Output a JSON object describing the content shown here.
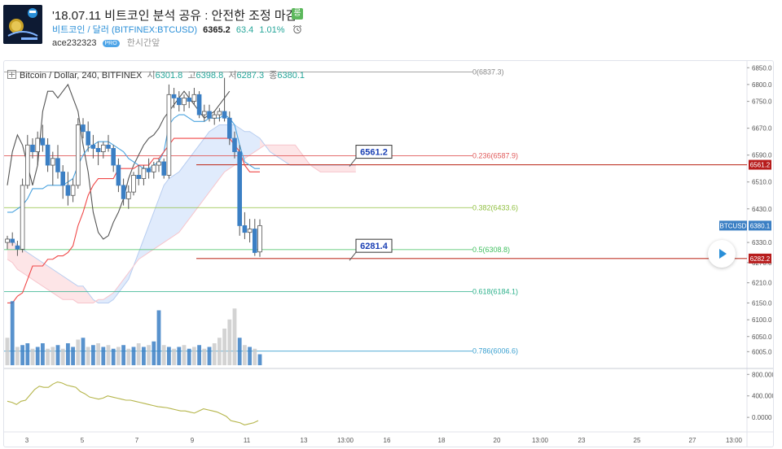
{
  "header": {
    "title": "'18.07.11 비트코인 분석 공유 : 안전한 조정 마감",
    "category_badge": "롱",
    "symbol_link": "비트코인 / 달러 (BITFINEX:BTCUSD)",
    "price": "6365.2",
    "change": "63.4",
    "change_pct": "1.01%",
    "author": "ace232323",
    "pro_label": "PRO",
    "time_ago": "한시간앞"
  },
  "legend": {
    "symbol": "Bitcoin / Dollar, 240, BITFINEX",
    "open_label": "시",
    "open": "6301.8",
    "high_label": "고",
    "high": "6398.8",
    "low_label": "저",
    "low": "6287.3",
    "close_label": "종",
    "close": "6380.1"
  },
  "colors": {
    "up": "#ffffff",
    "down": "#3b7fc4",
    "candle_border": "#555555",
    "fast_line": "#f04848",
    "slow_line": "#4aa3df",
    "lag_line": "#555555",
    "cloud_bull": "#dbe8fb",
    "cloud_bear": "#fde0e3",
    "resistance": "#c0392b",
    "volume_up": "#c8c8c8",
    "volume_down": "#3b7fc4",
    "oscillator": "#b5b54a"
  },
  "chart_data": {
    "type": "candlestick",
    "ylim": [
      5955,
      6870
    ],
    "y_ticks": [
      "6850.0",
      "6800.0",
      "6750.0",
      "6670.0",
      "6590.0",
      "6510.0",
      "6430.0",
      "6330.0",
      "6270.0",
      "6210.0",
      "6150.0",
      "6100.0",
      "6050.0",
      "6005.0"
    ],
    "x_ticks": [
      "3",
      "5",
      "7",
      "9",
      "11",
      "13",
      "13:00",
      "16",
      "18",
      "20",
      "13:00",
      "23",
      "25",
      "27",
      "13:00"
    ],
    "fib_levels": [
      {
        "label": "0(6837.3)",
        "value": 6837.3,
        "color": "#888888"
      },
      {
        "label": "0.236(6587.9)",
        "value": 6587.9,
        "color": "#e05a5a"
      },
      {
        "label": "0.382(6433.6)",
        "value": 6433.6,
        "color": "#8fbf3f"
      },
      {
        "label": "0.5(6308.8)",
        "value": 6308.8,
        "color": "#3fbf5f"
      },
      {
        "label": "0.618(6184.1)",
        "value": 6184.1,
        "color": "#2bb08a"
      },
      {
        "label": "0.786(6006.6)",
        "value": 6006.6,
        "color": "#3aa0d0"
      }
    ],
    "annotations": [
      {
        "label": "6561.2",
        "value": 6561.2
      },
      {
        "label": "6281.4",
        "value": 6281.4
      }
    ],
    "price_tags": [
      {
        "label": "6561.2",
        "value": 6561.2,
        "color": "#b71c1c"
      },
      {
        "label": "BTCUSD",
        "value": 6380.1,
        "color": "#3b7fc4"
      },
      {
        "label": "6380.1",
        "value": 6380.1,
        "color": "#3b7fc4"
      },
      {
        "label": "6282.2",
        "value": 6282.2,
        "color": "#b71c1c"
      }
    ],
    "candles": [
      [
        6330,
        6350,
        6310,
        6340
      ],
      [
        6340,
        6360,
        6320,
        6330
      ],
      [
        6320,
        6335,
        6290,
        6310
      ],
      [
        6310,
        6520,
        6300,
        6500
      ],
      [
        6500,
        6650,
        6490,
        6620
      ],
      [
        6620,
        6640,
        6580,
        6600
      ],
      [
        6600,
        6660,
        6560,
        6640
      ],
      [
        6640,
        6680,
        6600,
        6620
      ],
      [
        6620,
        6640,
        6540,
        6560
      ],
      [
        6560,
        6600,
        6500,
        6580
      ],
      [
        6580,
        6620,
        6520,
        6540
      ],
      [
        6540,
        6560,
        6460,
        6500
      ],
      [
        6500,
        6540,
        6440,
        6470
      ],
      [
        6470,
        6520,
        6450,
        6500
      ],
      [
        6500,
        6700,
        6490,
        6680
      ],
      [
        6680,
        6700,
        6640,
        6660
      ],
      [
        6660,
        6690,
        6600,
        6620
      ],
      [
        6620,
        6650,
        6580,
        6610
      ],
      [
        6610,
        6630,
        6560,
        6600
      ],
      [
        6600,
        6630,
        6580,
        6620
      ],
      [
        6620,
        6650,
        6600,
        6610
      ],
      [
        6610,
        6620,
        6540,
        6560
      ],
      [
        6560,
        6580,
        6480,
        6500
      ],
      [
        6500,
        6520,
        6440,
        6460
      ],
      [
        6460,
        6500,
        6430,
        6480
      ],
      [
        6480,
        6540,
        6470,
        6530
      ],
      [
        6530,
        6560,
        6500,
        6520
      ],
      [
        6520,
        6560,
        6500,
        6550
      ],
      [
        6550,
        6580,
        6520,
        6540
      ],
      [
        6540,
        6570,
        6520,
        6560
      ],
      [
        6560,
        6580,
        6540,
        6570
      ],
      [
        6570,
        6580,
        6520,
        6530
      ],
      [
        6530,
        6800,
        6520,
        6770
      ],
      [
        6770,
        6790,
        6730,
        6760
      ],
      [
        6760,
        6780,
        6720,
        6740
      ],
      [
        6740,
        6770,
        6720,
        6760
      ],
      [
        6760,
        6780,
        6730,
        6750
      ],
      [
        6750,
        6790,
        6740,
        6770
      ],
      [
        6770,
        6780,
        6700,
        6710
      ],
      [
        6710,
        6740,
        6690,
        6720
      ],
      [
        6720,
        6740,
        6690,
        6700
      ],
      [
        6700,
        6720,
        6680,
        6710
      ],
      [
        6710,
        6730,
        6690,
        6720
      ],
      [
        6720,
        6820,
        6690,
        6700
      ],
      [
        6700,
        6720,
        6620,
        6640
      ],
      [
        6640,
        6660,
        6580,
        6600
      ],
      [
        6600,
        6620,
        6350,
        6380
      ],
      [
        6380,
        6420,
        6340,
        6360
      ],
      [
        6360,
        6400,
        6330,
        6370
      ],
      [
        6370,
        6400,
        6290,
        6300
      ],
      [
        6301.8,
        6398.8,
        6287.3,
        6380.1
      ]
    ],
    "fast_line": [
      6150,
      6150,
      6170,
      6180,
      6220,
      6260,
      6260,
      6260,
      6280,
      6280,
      6290,
      6290,
      6300,
      6320,
      6380,
      6420,
      6470,
      6500,
      6520,
      6520,
      6520,
      6520,
      6550,
      6550,
      6550,
      6550,
      6560,
      6560,
      6560,
      6580,
      6580,
      6600,
      6620,
      6640,
      6640,
      6640,
      6640,
      6640,
      6640,
      6640,
      6640,
      6640,
      6640,
      6640,
      6640,
      6620,
      6600,
      6560,
      6540,
      6540,
      6540
    ],
    "slow_line": [
      6420,
      6420,
      6430,
      6440,
      6460,
      6490,
      6490,
      6490,
      6500,
      6500,
      6500,
      6500,
      6510,
      6520,
      6560,
      6590,
      6610,
      6620,
      6630,
      6630,
      6630,
      6620,
      6610,
      6600,
      6580,
      6570,
      6560,
      6550,
      6550,
      6560,
      6570,
      6600,
      6680,
      6700,
      6710,
      6710,
      6700,
      6690,
      6690,
      6690,
      6700,
      6700,
      6700,
      6710,
      6700,
      6680,
      6620,
      6570,
      6560,
      6550,
      6550
    ],
    "lag_line": [
      6500,
      6600,
      6650,
      6620,
      6560,
      6500,
      6560,
      6720,
      6780,
      6780,
      6760,
      6780,
      6800,
      6760,
      6720,
      6620,
      6540,
      6420,
      6360,
      6340,
      6350,
      6390,
      6420,
      6460,
      6520,
      6560,
      6590,
      6620,
      6640,
      6650,
      6670,
      6700,
      6720,
      6740,
      6760,
      6780,
      6760,
      6740,
      6720,
      6700,
      6710,
      6720,
      6740,
      6760,
      6780
    ],
    "cloud_upper": [
      6340,
      6340,
      6320,
      6310,
      6300,
      6290,
      6280,
      6270,
      6260,
      6250,
      6240,
      6230,
      6220,
      6210,
      6200,
      6200,
      6180,
      6160,
      6150,
      6150,
      6150,
      6160,
      6180,
      6200,
      6220,
      6260,
      6300,
      6340,
      6380,
      6420,
      6460,
      6500,
      6520,
      6530,
      6540,
      6560,
      6580,
      6600,
      6620,
      6640,
      6660,
      6670,
      6680,
      6680,
      6680,
      6680,
      6670,
      6660,
      6660,
      6650,
      6640,
      6620,
      6600,
      6590,
      6580,
      6570,
      6560,
      6560,
      6560,
      6560,
      6560,
      6560,
      6560,
      6560,
      6560,
      6560,
      6560,
      6560,
      6560,
      6560
    ],
    "cloud_lower": [
      6280,
      6270,
      6250,
      6240,
      6230,
      6220,
      6210,
      6200,
      6190,
      6180,
      6170,
      6160,
      6160,
      6160,
      6150,
      6150,
      6150,
      6150,
      6160,
      6160,
      6170,
      6180,
      6200,
      6220,
      6240,
      6260,
      6280,
      6290,
      6300,
      6310,
      6320,
      6330,
      6340,
      6350,
      6360,
      6380,
      6400,
      6420,
      6440,
      6460,
      6480,
      6500,
      6520,
      6540,
      6550,
      6560,
      6570,
      6580,
      6590,
      6600,
      6610,
      6620,
      6620,
      6620,
      6620,
      6620,
      6620,
      6620,
      6600,
      6580,
      6560,
      6550,
      6540,
      6540,
      6540,
      6540,
      6540,
      6540,
      6540,
      6540
    ],
    "volumes": [
      [
        30,
        false
      ],
      [
        70,
        true
      ],
      [
        20,
        false
      ],
      [
        22,
        true
      ],
      [
        24,
        true
      ],
      [
        18,
        false
      ],
      [
        20,
        true
      ],
      [
        24,
        true
      ],
      [
        18,
        false
      ],
      [
        20,
        false
      ],
      [
        22,
        true
      ],
      [
        18,
        false
      ],
      [
        24,
        true
      ],
      [
        20,
        true
      ],
      [
        28,
        false
      ],
      [
        30,
        true
      ],
      [
        20,
        false
      ],
      [
        22,
        true
      ],
      [
        24,
        false
      ],
      [
        20,
        true
      ],
      [
        22,
        false
      ],
      [
        18,
        true
      ],
      [
        20,
        false
      ],
      [
        22,
        true
      ],
      [
        18,
        false
      ],
      [
        20,
        true
      ],
      [
        24,
        false
      ],
      [
        20,
        true
      ],
      [
        22,
        false
      ],
      [
        26,
        true
      ],
      [
        60,
        true
      ],
      [
        22,
        false
      ],
      [
        20,
        true
      ],
      [
        18,
        false
      ],
      [
        20,
        true
      ],
      [
        22,
        false
      ],
      [
        18,
        true
      ],
      [
        20,
        false
      ],
      [
        22,
        true
      ],
      [
        18,
        false
      ],
      [
        20,
        true
      ],
      [
        24,
        false
      ],
      [
        30,
        false
      ],
      [
        40,
        false
      ],
      [
        50,
        false
      ],
      [
        62,
        false
      ],
      [
        30,
        true
      ],
      [
        22,
        false
      ],
      [
        20,
        true
      ],
      [
        18,
        false
      ],
      [
        12,
        true
      ]
    ],
    "volume_ylim": [
      0,
      80
    ],
    "oscillator": [
      300,
      280,
      240,
      300,
      320,
      420,
      520,
      580,
      560,
      560,
      620,
      660,
      640,
      600,
      580,
      560,
      480,
      440,
      380,
      360,
      340,
      360,
      400,
      380,
      360,
      340,
      320,
      320,
      300,
      280,
      260,
      240,
      220,
      200,
      190,
      180,
      160,
      140,
      120,
      120,
      100,
      80,
      120,
      160,
      140,
      120,
      100,
      60,
      20,
      -60,
      -80,
      -100,
      -140,
      -120,
      -100,
      -60
    ],
    "oscillator_ylim": [
      -240,
      880
    ],
    "oscillator_ticks": [
      "800.0000",
      "400.0000",
      "0.0000"
    ]
  }
}
